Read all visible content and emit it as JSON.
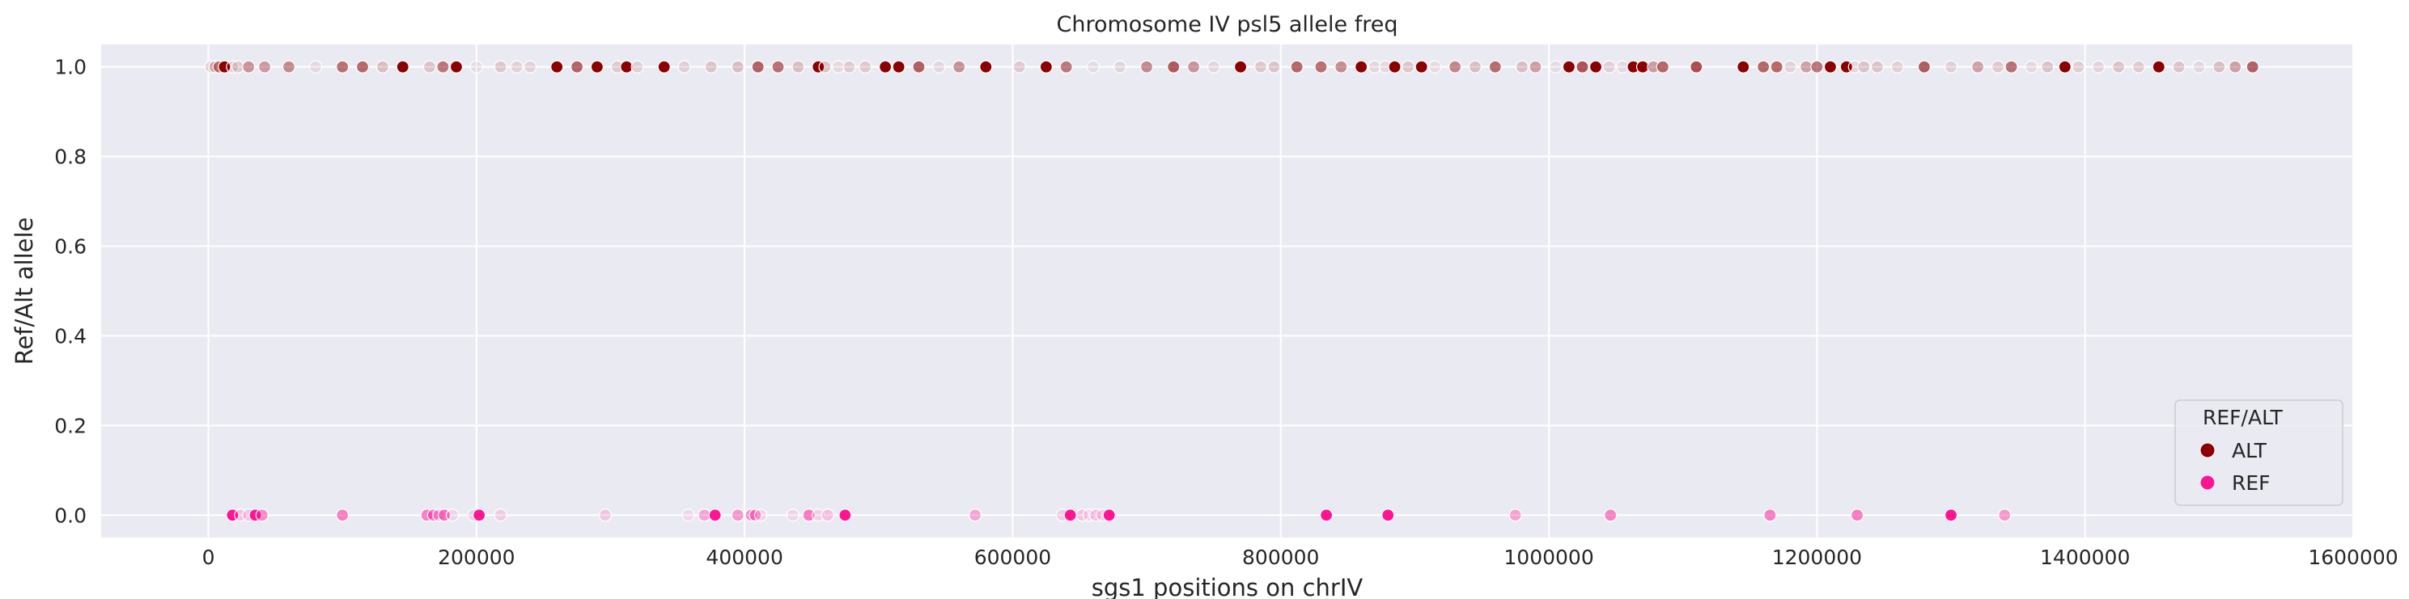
{
  "chart_data": {
    "type": "scatter",
    "title": "Chromosome IV psl5 allele freq",
    "xlabel": "sgs1 positions on chrIV",
    "ylabel": "Ref/Alt allele",
    "xlim": [
      -80000,
      1600000
    ],
    "ylim": [
      -0.05,
      1.05
    ],
    "x_ticks": [
      0,
      200000,
      400000,
      600000,
      800000,
      1000000,
      1200000,
      1400000,
      1600000
    ],
    "y_ticks": [
      0.0,
      0.2,
      0.4,
      0.6,
      0.8,
      1.0
    ],
    "x_tick_labels": [
      "0",
      "200000",
      "400000",
      "600000",
      "800000",
      "1000000",
      "1200000",
      "1400000",
      "1600000"
    ],
    "y_tick_labels": [
      "0.0",
      "0.2",
      "0.4",
      "0.6",
      "0.8",
      "1.0"
    ],
    "grid": true,
    "legend_position": "lower-right",
    "legend": {
      "title": "REF/ALT",
      "entries": [
        {
          "label": "ALT",
          "color": "#8b0000"
        },
        {
          "label": "REF",
          "color": "#ff1493"
        }
      ]
    },
    "background_color": "#eaeaf2",
    "series": [
      {
        "name": "ALT",
        "y": 1.0,
        "color": "#8b0000",
        "point_alpha_range": [
          0.05,
          1.0
        ],
        "x_approx": [
          2000,
          5000,
          8000,
          12000,
          18000,
          22000,
          30000,
          42000,
          60000,
          80000,
          100000,
          115000,
          130000,
          145000,
          165000,
          175000,
          185000,
          200000,
          218000,
          230000,
          240000,
          260000,
          275000,
          290000,
          305000,
          312000,
          320000,
          340000,
          355000,
          375000,
          395000,
          410000,
          425000,
          440000,
          455000,
          460000,
          470000,
          478000,
          490000,
          505000,
          515000,
          530000,
          545000,
          560000,
          580000,
          605000,
          625000,
          640000,
          660000,
          680000,
          700000,
          720000,
          735000,
          750000,
          770000,
          785000,
          795000,
          812000,
          830000,
          845000,
          860000,
          870000,
          878000,
          885000,
          895000,
          905000,
          915000,
          930000,
          945000,
          960000,
          980000,
          990000,
          1005000,
          1015000,
          1025000,
          1035000,
          1045000,
          1055000,
          1063000,
          1070000,
          1078000,
          1085000,
          1110000,
          1145000,
          1160000,
          1170000,
          1180000,
          1192000,
          1200000,
          1210000,
          1222000,
          1228000,
          1235000,
          1245000,
          1260000,
          1280000,
          1300000,
          1320000,
          1335000,
          1345000,
          1360000,
          1372000,
          1385000,
          1395000,
          1410000,
          1425000,
          1440000,
          1455000,
          1470000,
          1485000,
          1500000,
          1512000,
          1525000
        ]
      },
      {
        "name": "REF",
        "y": 0.0,
        "color": "#ff1493",
        "point_alpha_range": [
          0.05,
          1.0
        ],
        "x_approx": [
          18000,
          24000,
          30000,
          35000,
          40000,
          100000,
          163000,
          168000,
          172000,
          176000,
          182000,
          198000,
          202000,
          218000,
          296000,
          358000,
          370000,
          378000,
          395000,
          405000,
          408000,
          412000,
          436000,
          448000,
          455000,
          462000,
          475000,
          572000,
          637000,
          643000,
          652000,
          657000,
          662000,
          667000,
          672000,
          834000,
          880000,
          975000,
          1046000,
          1165000,
          1230000,
          1300000,
          1340000
        ]
      }
    ]
  }
}
